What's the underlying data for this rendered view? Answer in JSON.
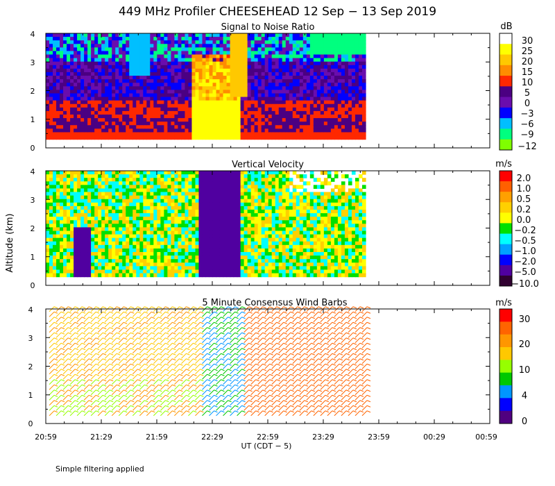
{
  "title": "449 MHz Profiler CHEESEHEAD 12 Sep − 13 Sep 2019",
  "y_axis_label": "Altitude (km)",
  "x_axis_label": "UT  (CDT − 5)",
  "footer_note": "Simple filtering applied",
  "chart_data": [
    {
      "type": "heatmap",
      "title": "Signal to Noise Ratio",
      "units": "dB",
      "x_tick_labels": [
        "20:59",
        "21:29",
        "21:59",
        "22:29",
        "22:59",
        "23:29",
        "23:59",
        "00:29",
        "00:59"
      ],
      "y_tick_labels": [
        "0",
        "1",
        "2",
        "3",
        "4"
      ],
      "ylim": [
        0,
        4
      ],
      "data_extent_x": [
        "20:59",
        "23:49"
      ],
      "data_extent_y": [
        0.3,
        4.0
      ],
      "colorbar": {
        "labels": [
          "30",
          "25",
          "20",
          "15",
          "10",
          "5",
          "0",
          "−3",
          "−6",
          "−9",
          "−12"
        ],
        "colors": [
          "#ffffff",
          "#ffff00",
          "#ffc800",
          "#ff8c00",
          "#ff2800",
          "#4b0082",
          "#6a0dad",
          "#0000ff",
          "#00bfff",
          "#00ff7f",
          "#7fff00"
        ]
      }
    },
    {
      "type": "heatmap",
      "title": "Vertical Velocity",
      "units": "m/s",
      "x_tick_labels": [
        "20:59",
        "21:29",
        "21:59",
        "22:29",
        "22:59",
        "23:29",
        "23:59",
        "00:29",
        "00:59"
      ],
      "y_tick_labels": [
        "0",
        "1",
        "2",
        "3",
        "4"
      ],
      "ylim": [
        0,
        4
      ],
      "data_extent_x": [
        "20:59",
        "23:49"
      ],
      "data_extent_y": [
        0.3,
        4.0
      ],
      "colorbar": {
        "labels": [
          "2.0",
          "1.0",
          "0.5",
          "0.2",
          "0.0",
          "−0.2",
          "−0.5",
          "−1.0",
          "−2.0",
          "−5.0",
          "−10.0"
        ],
        "colors": [
          "#ff0000",
          "#ff6000",
          "#ffa000",
          "#ffd000",
          "#ffff00",
          "#00e000",
          "#00ffff",
          "#00a0ff",
          "#0000ff",
          "#5000a0",
          "#300030"
        ]
      }
    },
    {
      "type": "wind_barbs",
      "title": "5 Minute Consensus Wind Barbs",
      "units": "m/s",
      "x_tick_labels": [
        "20:59",
        "21:29",
        "21:59",
        "22:29",
        "22:59",
        "23:29",
        "23:59",
        "00:29",
        "00:59"
      ],
      "y_tick_labels": [
        "0",
        "1",
        "2",
        "3",
        "4"
      ],
      "ylim": [
        0,
        4
      ],
      "data_extent_x": [
        "20:59",
        "23:49"
      ],
      "colorbar": {
        "labels": [
          "30",
          "20",
          "10",
          "4",
          "0"
        ],
        "colors": [
          "#ff0000",
          "#ff6400",
          "#ff9600",
          "#ffc800",
          "#96ff00",
          "#00c800",
          "#0096ff",
          "#0000ff",
          "#500080"
        ]
      }
    }
  ]
}
